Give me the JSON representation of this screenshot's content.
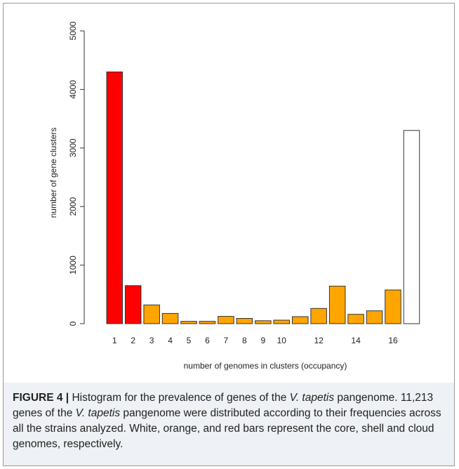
{
  "chart_data": {
    "type": "bar",
    "categories": [
      "1",
      "2",
      "3",
      "4",
      "5",
      "6",
      "7",
      "8",
      "9",
      "10",
      "11",
      "12",
      "13",
      "14",
      "15",
      "16",
      "17"
    ],
    "tick_labels_x": [
      "1",
      "2",
      "3",
      "4",
      "5",
      "6",
      "7",
      "8",
      "9",
      "10",
      "12",
      "14",
      "16"
    ],
    "values": [
      4300,
      650,
      320,
      175,
      40,
      40,
      125,
      90,
      50,
      60,
      120,
      260,
      640,
      160,
      220,
      575,
      3300
    ],
    "bar_colors": [
      "#ff0000",
      "#ff0000",
      "#ffa500",
      "#ffa500",
      "#ffa500",
      "#ffa500",
      "#ffa500",
      "#ffa500",
      "#ffa500",
      "#ffa500",
      "#ffa500",
      "#ffa500",
      "#ffa500",
      "#ffa500",
      "#ffa500",
      "#ffa500",
      "#ffffff"
    ],
    "bar_stroke": "#333333",
    "title": "",
    "xlabel": "number of genomes in clusters (occupancy)",
    "ylabel": "number of gene clusters",
    "ylim": [
      0,
      5000
    ],
    "yticks": [
      0,
      1000,
      2000,
      3000,
      4000,
      5000
    ],
    "grid": false,
    "legend": "none"
  },
  "caption": {
    "label": "FIGURE 4 |",
    "t1": " Histogram for the prevalence of genes of the ",
    "species": "V. tapetis",
    "t2": " pangenome. 11,213 genes of the ",
    "species2": "V. tapetis",
    "t3": " pangenome were distributed according to their frequencies across all the strains analyzed. White, orange, and red bars represent the core, shell and cloud genomes, respectively."
  }
}
